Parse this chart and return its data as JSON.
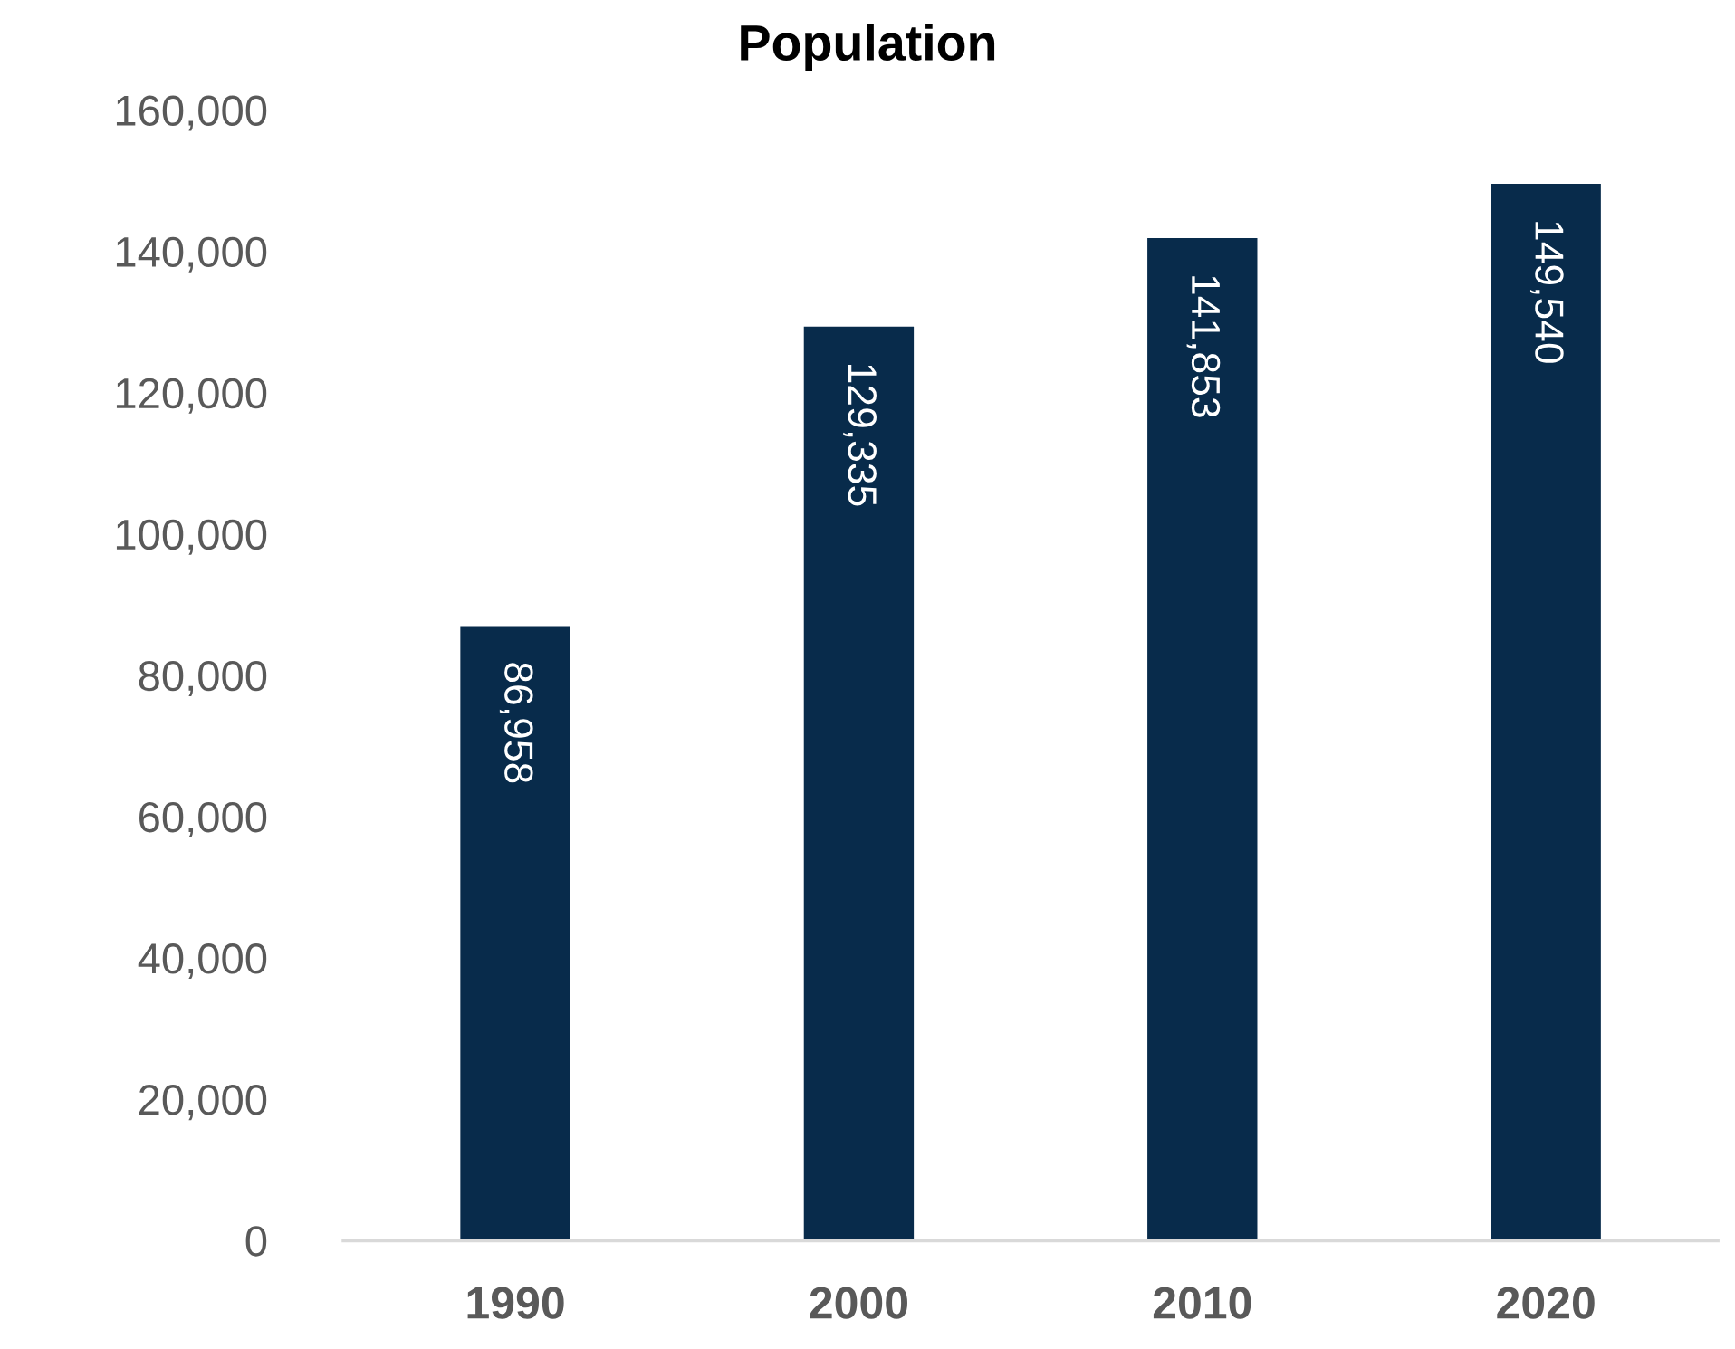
{
  "chart_data": {
    "type": "bar",
    "title": "Population",
    "categories": [
      "1990",
      "2000",
      "2010",
      "2020"
    ],
    "values": [
      86958,
      129335,
      141853,
      149540
    ],
    "color": "#082b4b",
    "value_labels": [
      "86,958",
      "129,335",
      "141,853",
      "149,540"
    ],
    "ylim": [
      0,
      160000
    ],
    "yticks": [
      0,
      {
        "value": 20000,
        "label": "20,000"
      },
      {
        "value": 40000,
        "label": "40,000"
      },
      {
        "value": 60000,
        "label": "60,000"
      },
      {
        "value": 80000,
        "label": "80,000"
      },
      {
        "value": 100000,
        "label": "100,000"
      },
      {
        "value": 120000,
        "label": "120,000"
      },
      {
        "value": 140000,
        "label": "140,000"
      },
      {
        "value": 160000,
        "label": "160,000"
      }
    ]
  }
}
